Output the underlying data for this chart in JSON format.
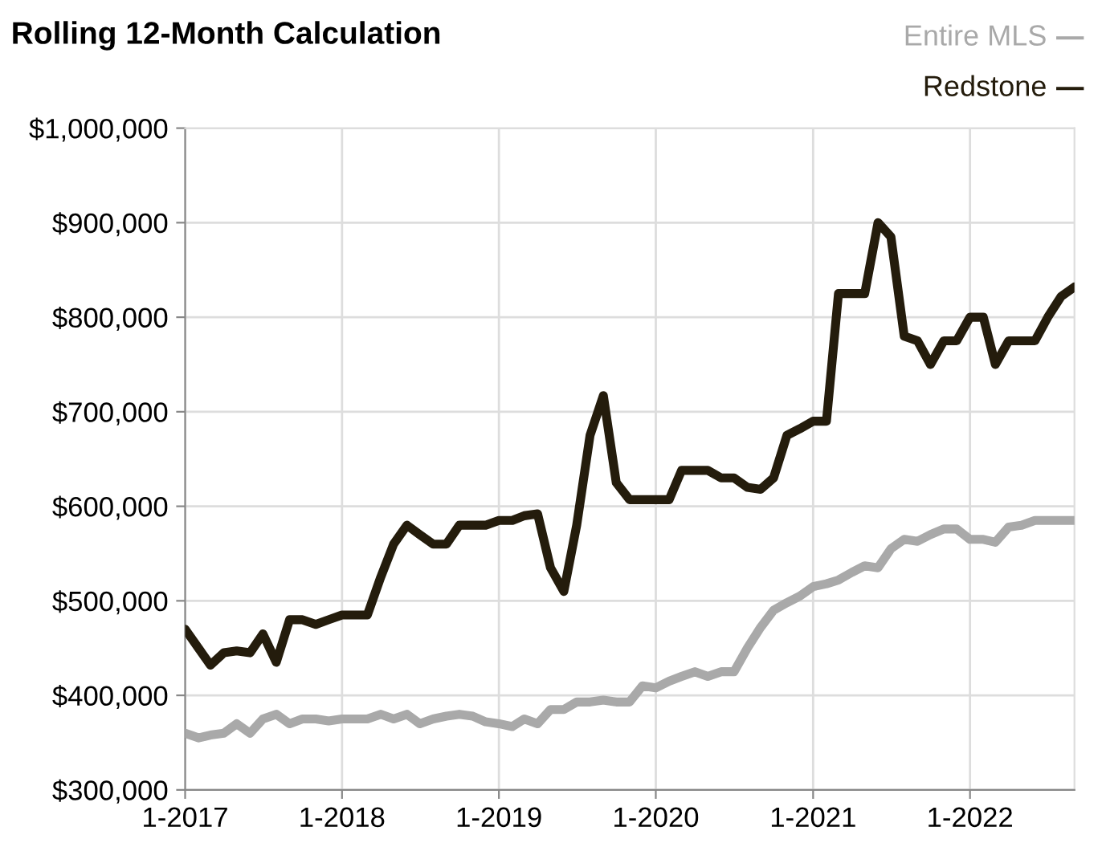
{
  "chart_data": {
    "type": "line",
    "title": "Rolling 12-Month Calculation",
    "x": [
      "2017-01",
      "2017-02",
      "2017-03",
      "2017-04",
      "2017-05",
      "2017-06",
      "2017-07",
      "2017-08",
      "2017-09",
      "2017-10",
      "2017-11",
      "2017-12",
      "2018-01",
      "2018-02",
      "2018-03",
      "2018-04",
      "2018-05",
      "2018-06",
      "2018-07",
      "2018-08",
      "2018-09",
      "2018-10",
      "2018-11",
      "2018-12",
      "2019-01",
      "2019-02",
      "2019-03",
      "2019-04",
      "2019-05",
      "2019-06",
      "2019-07",
      "2019-08",
      "2019-09",
      "2019-10",
      "2019-11",
      "2019-12",
      "2020-01",
      "2020-02",
      "2020-03",
      "2020-04",
      "2020-05",
      "2020-06",
      "2020-07",
      "2020-08",
      "2020-09",
      "2020-10",
      "2020-11",
      "2020-12",
      "2021-01",
      "2021-02",
      "2021-03",
      "2021-04",
      "2021-05",
      "2021-06",
      "2021-07",
      "2021-08",
      "2021-09",
      "2021-10",
      "2021-11",
      "2021-12",
      "2022-01",
      "2022-02",
      "2022-03",
      "2022-04",
      "2022-05",
      "2022-06",
      "2022-07",
      "2022-08",
      "2022-09"
    ],
    "series": [
      {
        "name": "Entire MLS",
        "color": "#a9a9a9",
        "values": [
          360000,
          355000,
          358000,
          360000,
          370000,
          360000,
          375000,
          380000,
          370000,
          375000,
          375000,
          373000,
          375000,
          375000,
          375000,
          380000,
          375000,
          380000,
          370000,
          375000,
          378000,
          380000,
          378000,
          372000,
          370000,
          367000,
          375000,
          370000,
          385000,
          385000,
          393000,
          393000,
          395000,
          393000,
          393000,
          410000,
          408000,
          415000,
          420000,
          425000,
          420000,
          425000,
          425000,
          450000,
          472000,
          490000,
          498000,
          505000,
          515000,
          518000,
          522000,
          530000,
          537000,
          535000,
          555000,
          565000,
          563000,
          570000,
          576000,
          576000,
          565000,
          565000,
          562000,
          578000,
          580000,
          585000,
          585000,
          585000,
          585000
        ]
      },
      {
        "name": "Redstone",
        "color": "#241c0c",
        "values": [
          470000,
          450000,
          432000,
          445000,
          447000,
          445000,
          465000,
          435000,
          480000,
          480000,
          475000,
          480000,
          485000,
          485000,
          485000,
          525000,
          560000,
          580000,
          570000,
          560000,
          560000,
          580000,
          580000,
          580000,
          585000,
          585000,
          590000,
          592000,
          535000,
          510000,
          580000,
          675000,
          717000,
          625000,
          607000,
          607000,
          607000,
          607000,
          638000,
          638000,
          638000,
          630000,
          630000,
          620000,
          618000,
          630000,
          675000,
          682000,
          690000,
          690000,
          825000,
          825000,
          825000,
          900000,
          885000,
          780000,
          775000,
          750000,
          775000,
          775000,
          800000,
          800000,
          750000,
          775000,
          775000,
          775000,
          800000,
          822000,
          832000
        ]
      }
    ],
    "xlim": [
      "2017-01",
      "2022-09"
    ],
    "xticks": [
      {
        "value": "2017-01",
        "label": "1-2017"
      },
      {
        "value": "2018-01",
        "label": "1-2018"
      },
      {
        "value": "2019-01",
        "label": "1-2019"
      },
      {
        "value": "2020-01",
        "label": "1-2020"
      },
      {
        "value": "2021-01",
        "label": "1-2021"
      },
      {
        "value": "2022-01",
        "label": "1-2022"
      }
    ],
    "ylim": [
      300000,
      1000000
    ],
    "yticks": [
      {
        "value": 300000,
        "label": "$300,000"
      },
      {
        "value": 400000,
        "label": "$400,000"
      },
      {
        "value": 500000,
        "label": "$500,000"
      },
      {
        "value": 600000,
        "label": "$600,000"
      },
      {
        "value": 700000,
        "label": "$700,000"
      },
      {
        "value": 800000,
        "label": "$800,000"
      },
      {
        "value": 900000,
        "label": "$900,000"
      },
      {
        "value": 1000000,
        "label": "$1,000,000"
      }
    ],
    "grid": true,
    "legend": "top right",
    "marker": "none",
    "line_style": "solid"
  }
}
